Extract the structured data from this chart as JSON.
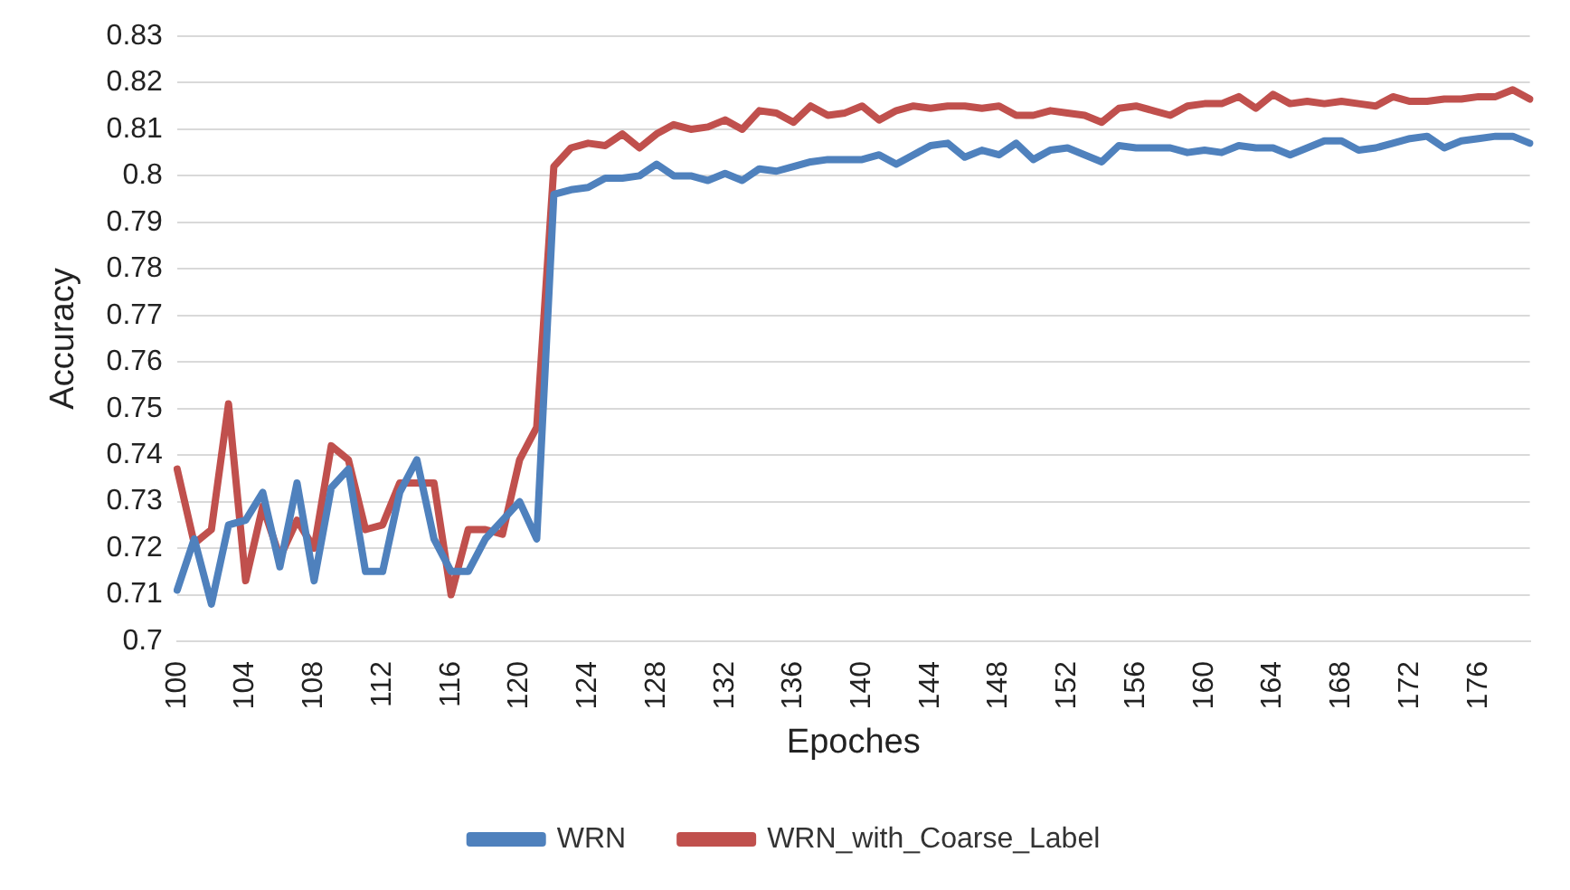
{
  "chart_data": {
    "type": "line",
    "xlabel": "Epoches",
    "ylabel": "Accuracy",
    "categories": [
      "100",
      null,
      null,
      null,
      "104",
      null,
      null,
      null,
      "108",
      null,
      null,
      null,
      "112",
      null,
      null,
      null,
      "116",
      null,
      null,
      null,
      "120",
      null,
      null,
      null,
      "124",
      null,
      null,
      null,
      "128",
      null,
      null,
      null,
      "132",
      null,
      null,
      null,
      "136",
      null,
      null,
      null,
      "140",
      null,
      null,
      null,
      "144",
      null,
      null,
      null,
      "148",
      null,
      null,
      null,
      "152",
      null,
      null,
      null,
      "156",
      null,
      null,
      null,
      "160",
      null,
      null,
      null,
      "164",
      null,
      null,
      null,
      "168",
      null,
      null,
      null,
      "172",
      null,
      null,
      null,
      "176",
      null,
      null,
      null
    ],
    "series": [
      {
        "name": "WRN",
        "color": "#4f81bd",
        "values": [
          0.711,
          0.722,
          0.708,
          0.725,
          0.726,
          0.732,
          0.716,
          0.734,
          0.713,
          0.733,
          0.737,
          0.715,
          0.715,
          0.732,
          0.739,
          0.722,
          0.715,
          0.715,
          0.722,
          0.726,
          0.73,
          0.722,
          0.796,
          0.797,
          0.7975,
          0.7995,
          0.7995,
          0.8,
          0.8025,
          0.8,
          0.8,
          0.799,
          0.8005,
          0.799,
          0.8015,
          0.801,
          0.802,
          0.803,
          0.8035,
          0.8035,
          0.8035,
          0.8045,
          0.8025,
          0.8045,
          0.8065,
          0.807,
          0.804,
          0.8055,
          0.8045,
          0.807,
          0.8035,
          0.8055,
          0.806,
          0.8045,
          0.803,
          0.8065,
          0.806,
          0.806,
          0.806,
          0.805,
          0.8055,
          0.805,
          0.8065,
          0.806,
          0.806,
          0.8045,
          0.806,
          0.8075,
          0.8075,
          0.8055,
          0.806,
          0.807,
          0.808,
          0.8085,
          0.806,
          0.8075,
          0.808,
          0.8085,
          0.8085,
          0.807
        ]
      },
      {
        "name": "WRN_with_Coarse_Label",
        "color": "#c0504d",
        "values": [
          0.737,
          0.721,
          0.724,
          0.751,
          0.713,
          0.729,
          0.718,
          0.726,
          0.72,
          0.742,
          0.739,
          0.724,
          0.725,
          0.734,
          0.734,
          0.734,
          0.71,
          0.724,
          0.724,
          0.723,
          0.739,
          0.746,
          0.802,
          0.806,
          0.807,
          0.8065,
          0.809,
          0.806,
          0.809,
          0.811,
          0.81,
          0.8105,
          0.812,
          0.81,
          0.814,
          0.8135,
          0.8115,
          0.815,
          0.813,
          0.8135,
          0.815,
          0.812,
          0.814,
          0.815,
          0.8145,
          0.815,
          0.815,
          0.8145,
          0.815,
          0.813,
          0.813,
          0.814,
          0.8135,
          0.813,
          0.8115,
          0.8145,
          0.815,
          0.814,
          0.813,
          0.815,
          0.8155,
          0.8155,
          0.817,
          0.8145,
          0.8175,
          0.8155,
          0.816,
          0.8155,
          0.816,
          0.8155,
          0.815,
          0.817,
          0.816,
          0.816,
          0.8165,
          0.8165,
          0.817,
          0.817,
          0.8185,
          0.8165
        ]
      }
    ],
    "ylim": [
      0.7,
      0.83
    ],
    "yticks": [
      0.7,
      0.71,
      0.72,
      0.73,
      0.74,
      0.75,
      0.76,
      0.77,
      0.78,
      0.79,
      0.8,
      0.81,
      0.82,
      0.83
    ],
    "grid": "y",
    "legend": "bottom",
    "marker": "none",
    "line_style": "solid"
  }
}
